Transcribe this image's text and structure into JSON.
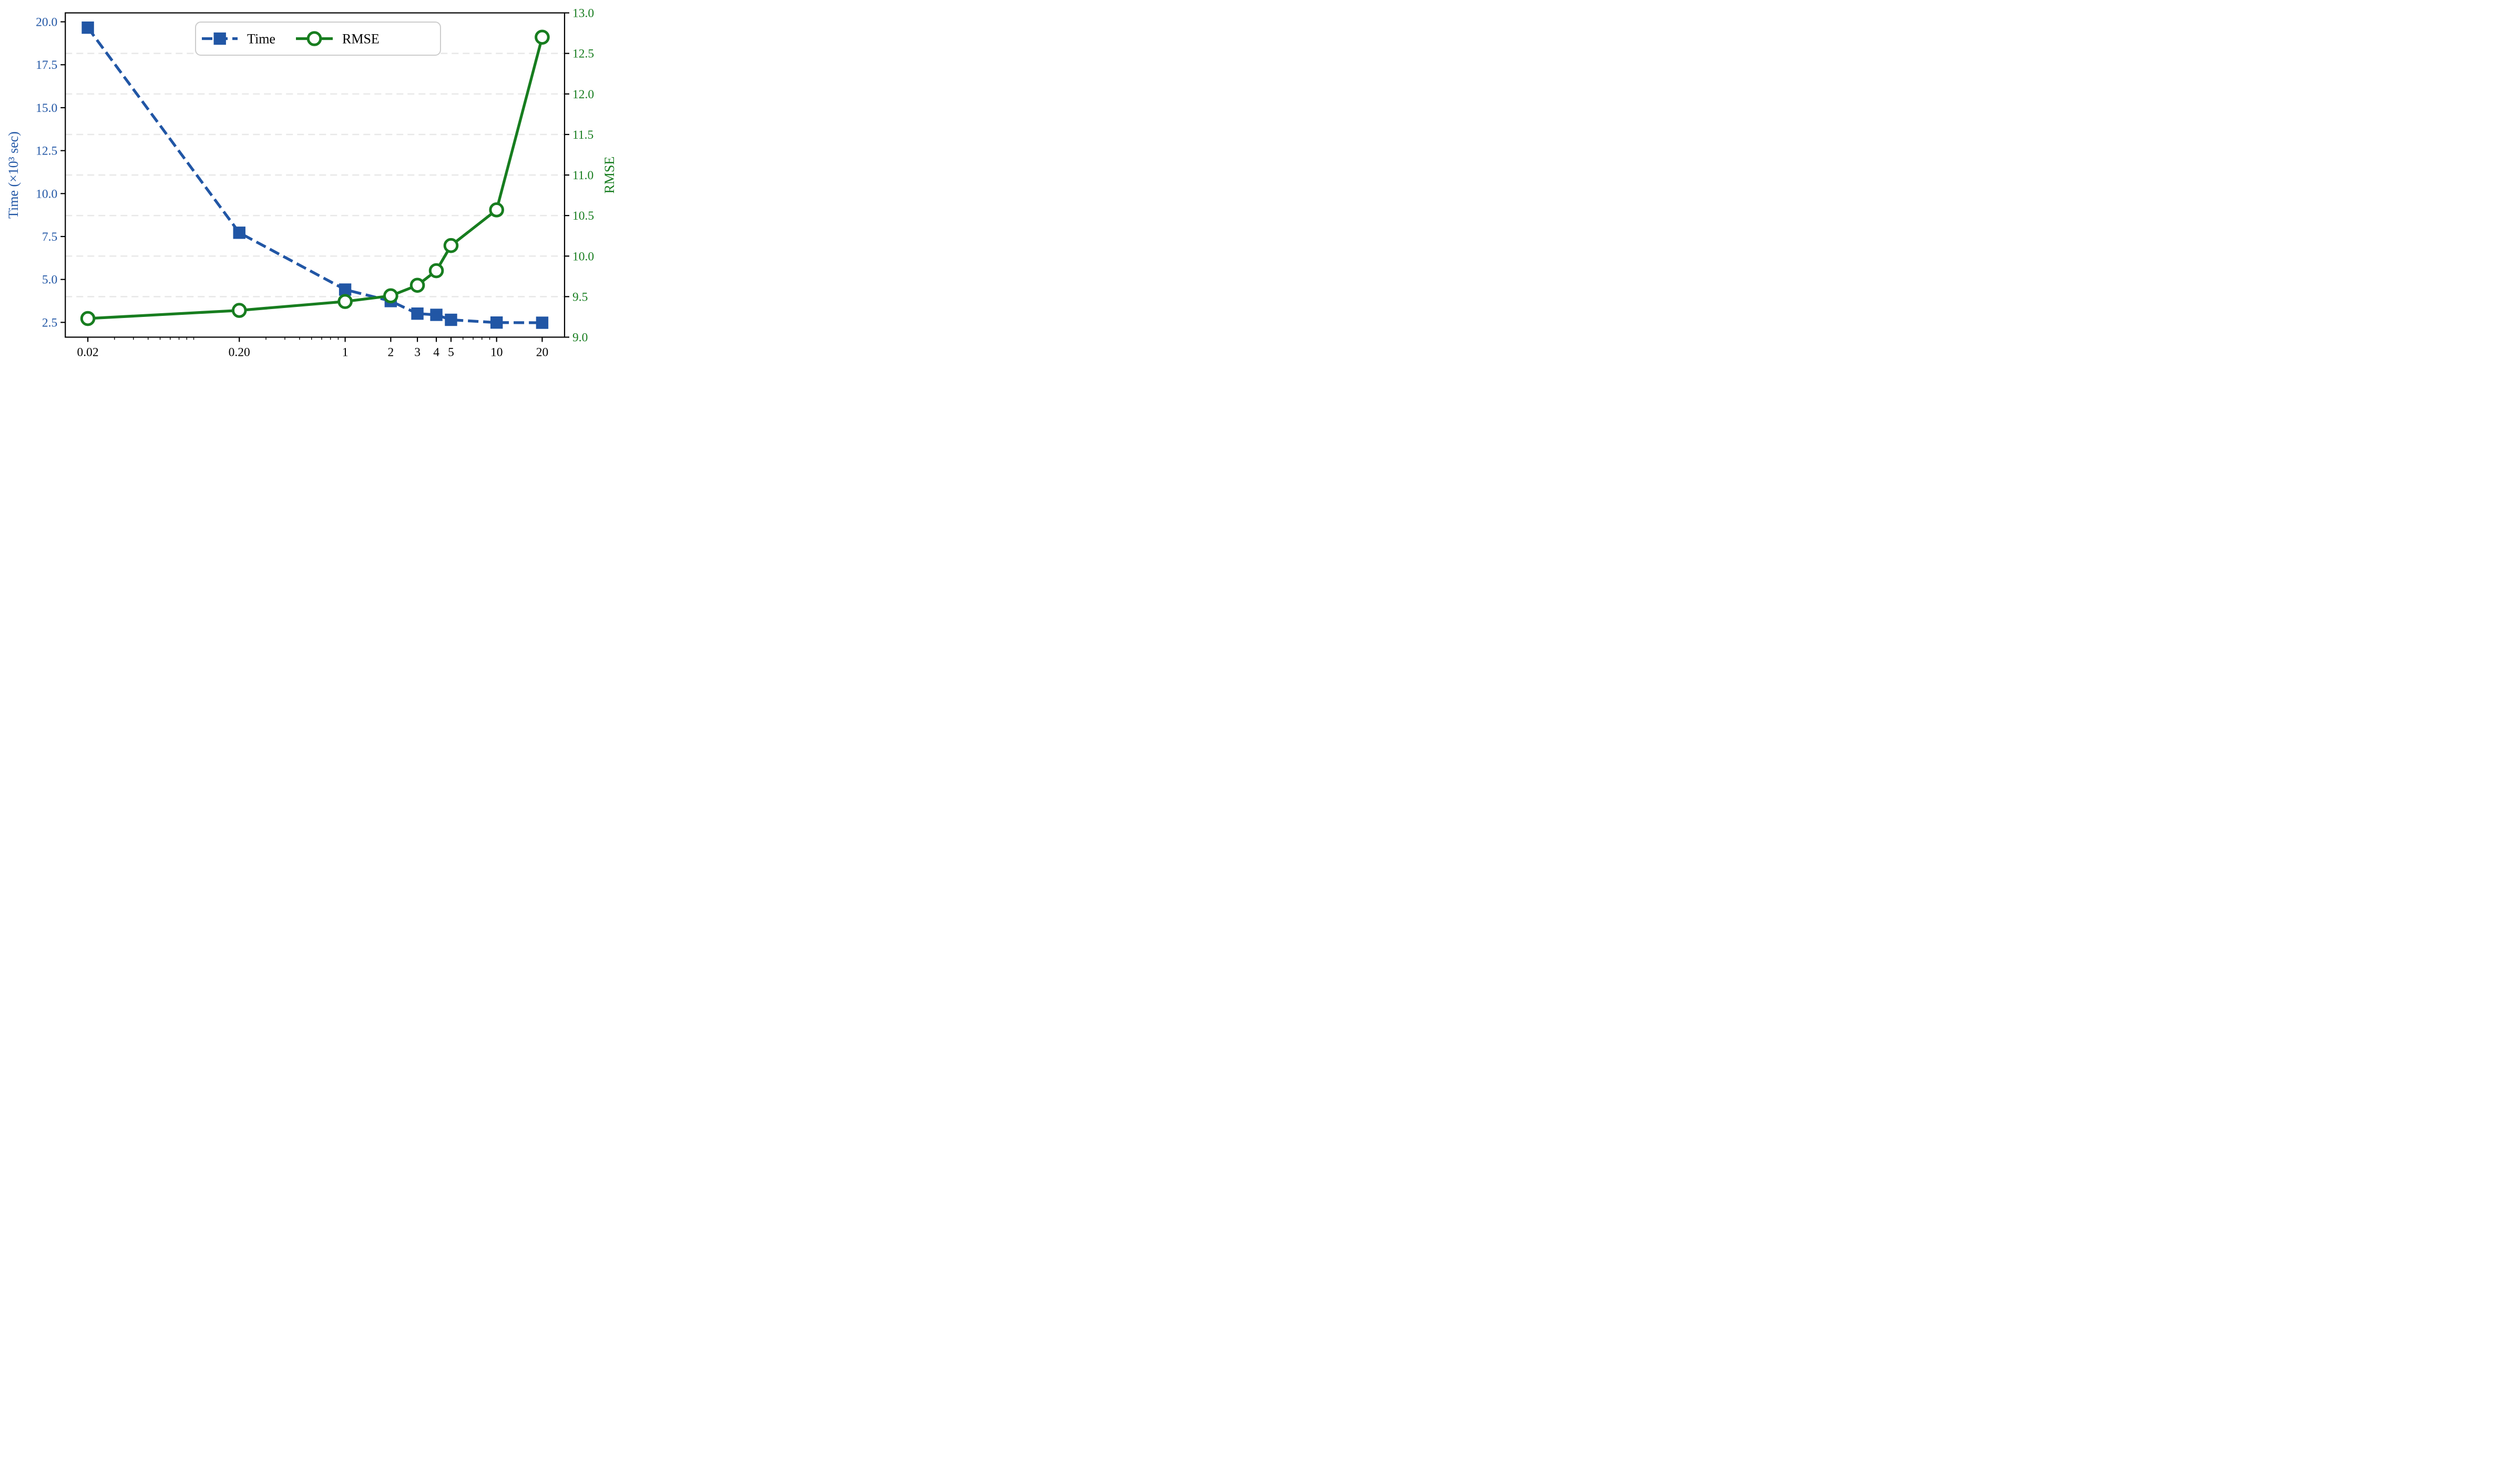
{
  "figure": {
    "background": "#ffffff",
    "plot_border_color": "#000000"
  },
  "chart_data": {
    "type": "line",
    "x_scale": "log",
    "x": [
      0.02,
      0.2,
      1,
      2,
      3,
      4,
      5,
      10,
      20
    ],
    "series": [
      {
        "name": "Time",
        "axis": "left",
        "values": [
          19.66,
          7.72,
          4.41,
          3.74,
          3.01,
          2.94,
          2.65,
          2.49,
          2.48
        ],
        "color": "#2156a5",
        "line_style": "dashed",
        "marker": "square-filled"
      },
      {
        "name": "RMSE",
        "axis": "right",
        "values": [
          9.23,
          9.33,
          9.44,
          9.51,
          9.64,
          9.82,
          10.13,
          10.57,
          12.7
        ],
        "color": "#177d1f",
        "line_style": "solid",
        "marker": "circle-open"
      }
    ],
    "x_axis": {
      "tick_values": [
        0.02,
        0.2,
        1,
        2,
        3,
        4,
        5,
        10,
        20
      ],
      "tick_labels": [
        "0.02",
        "0.20",
        "1",
        "2",
        "3",
        "4",
        "5",
        "10",
        "20"
      ],
      "minor_tick_values": [
        0.03,
        0.04,
        0.05,
        0.06,
        0.07,
        0.08,
        0.09,
        0.1,
        0.3,
        0.4,
        0.5,
        0.6,
        0.7,
        0.8,
        0.9,
        6,
        7,
        8,
        9
      ],
      "range": [
        0.0142,
        28.1
      ],
      "label": "",
      "color": "#000000"
    },
    "left_axis": {
      "label": "Time (×10³ sec)",
      "tick_values": [
        2.5,
        5.0,
        7.5,
        10.0,
        12.5,
        15.0,
        17.5,
        20.0
      ],
      "tick_labels": [
        "2.5",
        "5.0",
        "7.5",
        "10.0",
        "12.5",
        "15.0",
        "17.5",
        "20.0"
      ],
      "range": [
        1.64,
        20.52
      ],
      "color": "#2156a5"
    },
    "right_axis": {
      "label": "RMSE",
      "tick_values": [
        9.0,
        9.5,
        10.0,
        10.5,
        11.0,
        11.5,
        12.0,
        12.5,
        13.0
      ],
      "tick_labels": [
        "9.0",
        "9.5",
        "10.0",
        "10.5",
        "11.0",
        "11.5",
        "12.0",
        "12.5",
        "13.0"
      ],
      "range": [
        9.0,
        13.0
      ],
      "color": "#177d1f"
    },
    "grid": {
      "show": true,
      "follows": "right-axis-ticks",
      "color": "#e8e8e8",
      "style": "dashed"
    },
    "legend": {
      "position": "top-center",
      "border_color": "#cccccc",
      "background": "#ffffff",
      "entries": [
        "Time",
        "RMSE"
      ]
    }
  }
}
